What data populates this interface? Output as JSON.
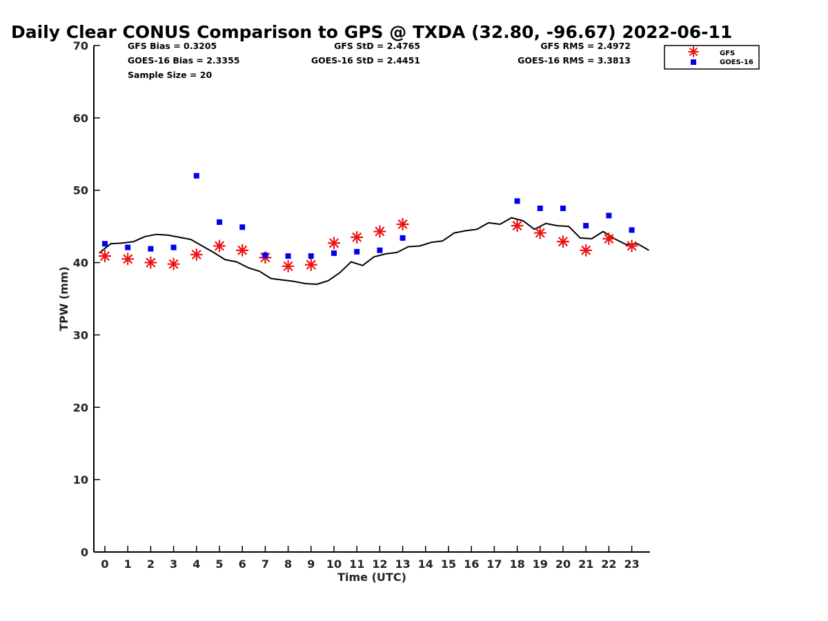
{
  "chart_data": {
    "type": "scatter",
    "title": "Daily Clear CONUS Comparison to GPS @ TXDA (32.80, -96.67) 2022-06-11",
    "xlabel": "Time (UTC)",
    "ylabel": "TPW (mm)",
    "xlim": [
      -0.5,
      23.75
    ],
    "ylim": [
      0,
      70
    ],
    "x_ticks": [
      0,
      1,
      2,
      3,
      4,
      5,
      6,
      7,
      8,
      9,
      10,
      11,
      12,
      13,
      14,
      15,
      16,
      17,
      18,
      19,
      20,
      21,
      22,
      23
    ],
    "y_ticks": [
      0,
      10,
      20,
      30,
      40,
      50,
      60,
      70
    ],
    "grid": false,
    "legend_position": "top-right",
    "stats": [
      {
        "text": "GFS Bias = 0.3205"
      },
      {
        "text": "GOES-16 Bias = 2.3355"
      },
      {
        "text": "Sample Size = 20"
      },
      {
        "text": "GFS StD = 2.4765"
      },
      {
        "text": "GOES-16 StD = 2.4451"
      },
      {
        "text": "GFS RMS = 2.4972"
      },
      {
        "text": "GOES-16 RMS = 3.3813"
      }
    ],
    "series": [
      {
        "kind": "line",
        "color": "#000000",
        "x": [
          -0.25,
          0.25,
          0.75,
          1.25,
          1.75,
          2.25,
          2.75,
          3.25,
          3.75,
          4.25,
          4.75,
          5.25,
          5.75,
          6.25,
          6.75,
          7.25,
          7.75,
          8.25,
          8.75,
          9.25,
          9.75,
          10.25,
          10.75,
          11.25,
          11.75,
          12.25,
          12.75,
          13.25,
          13.75,
          14.25,
          14.75,
          15.25,
          15.75,
          16.25,
          16.75,
          17.25,
          17.75,
          18.25,
          18.75,
          19.25,
          19.75,
          20.25,
          20.75,
          21.25,
          21.75,
          22.25,
          22.75,
          23.25,
          23.75
        ],
        "y": [
          41.3,
          42.6,
          42.7,
          42.9,
          43.6,
          43.9,
          43.8,
          43.5,
          43.2,
          42.3,
          41.4,
          40.4,
          40.1,
          39.3,
          38.8,
          37.8,
          37.6,
          37.4,
          37.1,
          37.0,
          37.5,
          38.6,
          40.1,
          39.6,
          40.8,
          41.2,
          41.4,
          42.2,
          42.3,
          42.8,
          43.0,
          44.1,
          44.4,
          44.6,
          45.5,
          45.3,
          46.2,
          45.8,
          44.6,
          45.4,
          45.1,
          45.0,
          43.4,
          43.3,
          44.3,
          43.3,
          42.5,
          42.6,
          41.7
        ]
      },
      {
        "name": "GFS",
        "kind": "asterisk",
        "color": "#ee1111",
        "x": [
          0,
          1,
          2,
          3,
          4,
          5,
          6,
          7,
          8,
          9,
          10,
          11,
          12,
          13,
          18,
          19,
          20,
          21,
          22,
          23
        ],
        "y": [
          40.9,
          40.5,
          40.0,
          39.8,
          41.1,
          42.3,
          41.7,
          40.7,
          39.5,
          39.7,
          42.7,
          43.5,
          44.3,
          45.3,
          45.1,
          44.1,
          42.9,
          41.7,
          43.3,
          42.3
        ]
      },
      {
        "name": "GOES-16",
        "kind": "square",
        "color": "#0000ee",
        "x": [
          0,
          1,
          2,
          3,
          4,
          5,
          6,
          7,
          8,
          9,
          10,
          11,
          12,
          13,
          18,
          19,
          20,
          21,
          22,
          23
        ],
        "y": [
          42.6,
          42.1,
          41.9,
          42.1,
          52.0,
          45.6,
          44.9,
          41.0,
          40.9,
          40.9,
          41.3,
          41.5,
          41.7,
          43.4,
          48.5,
          47.5,
          47.5,
          45.1,
          46.5,
          44.5
        ]
      }
    ]
  }
}
